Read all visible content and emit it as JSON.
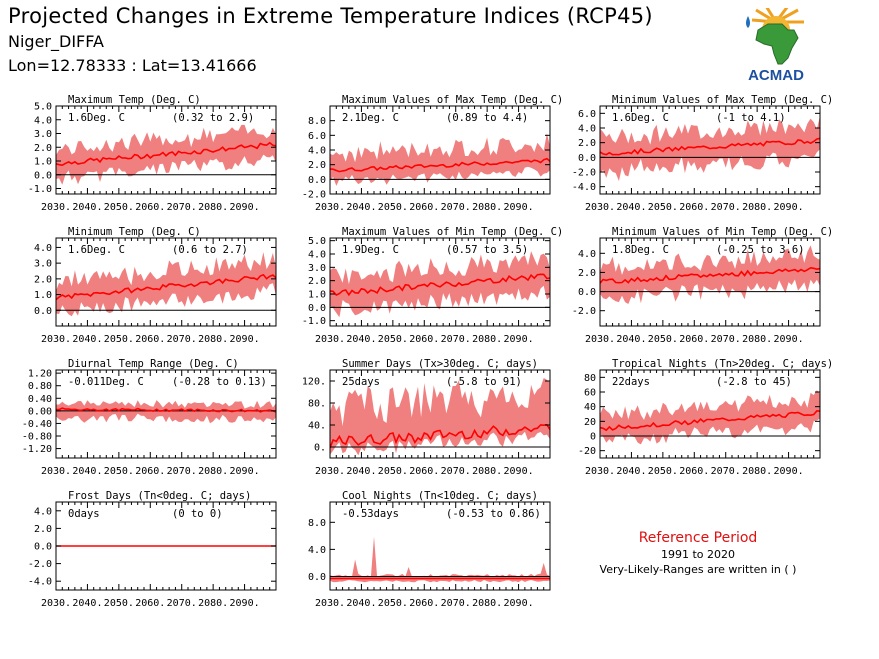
{
  "header": {
    "title": "Projected Changes in Extreme Temperature Indices (RCP45)",
    "station": "Niger_DIFFA",
    "coords": "Lon=12.78333 : Lat=13.41666"
  },
  "logo": {
    "text": "ACMAD"
  },
  "reference": {
    "title": "Reference Period",
    "years": "1991 to 2020",
    "note": "Very-Likely-Ranges are written in ( )"
  },
  "colors": {
    "band": "#f08080",
    "line": "#ff0000",
    "zero": "#000000"
  },
  "chart_data": [
    {
      "type": "area",
      "title": "Maximum Temp (Deg. C)",
      "value_label": "1.6Deg. C",
      "range_label": "(0.32 to 2.9)",
      "xlim": [
        2030,
        2100
      ],
      "ylim": [
        -1.4,
        5.0
      ],
      "yticks": [
        -1.0,
        0.0,
        1.0,
        2.0,
        3.0,
        4.0,
        5.0
      ],
      "ytick_labels": [
        "-1.0",
        "0.0",
        "1.0",
        "2.0",
        "3.0",
        "4.0",
        "5.0"
      ],
      "xticks": [
        2030,
        2040,
        2050,
        2060,
        2070,
        2080,
        2090
      ],
      "xtick_labels": [
        "2030.",
        "2040.",
        "2050.",
        "2060.",
        "2070.",
        "2080.",
        "2090."
      ],
      "mean_start": 0.8,
      "mean_end": 2.2,
      "band_low": 1.1,
      "band_high": 1.2,
      "noise": 0.35
    },
    {
      "type": "area",
      "title": "Maximum Values of Max Temp (Deg. C)",
      "value_label": "2.1Deg. C",
      "range_label": "(0.89 to 4.4)",
      "xlim": [
        2030,
        2100
      ],
      "ylim": [
        -2.0,
        10.0
      ],
      "yticks": [
        -2.0,
        0.0,
        2.0,
        4.0,
        6.0,
        8.0
      ],
      "ytick_labels": [
        "-2.0",
        "0.0",
        "2.0",
        "4.0",
        "6.0",
        "8.0"
      ],
      "xticks": [
        2030,
        2040,
        2050,
        2060,
        2070,
        2080,
        2090
      ],
      "xtick_labels": [
        "2030.",
        "2040.",
        "2050.",
        "2060.",
        "2070.",
        "2080.",
        "2090."
      ],
      "mean_start": 1.2,
      "mean_end": 2.6,
      "band_low": 1.6,
      "band_high": 2.6,
      "noise": 0.5
    },
    {
      "type": "area",
      "title": "Minimum Values of Max Temp (Deg. C)",
      "value_label": "1.6Deg. C",
      "range_label": "(-1 to 4.1)",
      "xlim": [
        2030,
        2100
      ],
      "ylim": [
        -5.0,
        7.0
      ],
      "yticks": [
        -4.0,
        -2.0,
        0.0,
        2.0,
        4.0,
        6.0
      ],
      "ytick_labels": [
        "-4.0",
        "-2.0",
        "0.0",
        "2.0",
        "4.0",
        "6.0"
      ],
      "xticks": [
        2030,
        2040,
        2050,
        2060,
        2070,
        2080,
        2090
      ],
      "xtick_labels": [
        "2030.",
        "2040.",
        "2050.",
        "2060.",
        "2070.",
        "2080.",
        "2090."
      ],
      "mean_start": 0.5,
      "mean_end": 2.3,
      "band_low": 2.6,
      "band_high": 2.5,
      "noise": 0.6
    },
    {
      "type": "area",
      "title": "Minimum Temp (Deg. C)",
      "value_label": "1.6Deg. C",
      "range_label": "(0.6 to 2.7)",
      "xlim": [
        2030,
        2100
      ],
      "ylim": [
        -1.0,
        4.6
      ],
      "yticks": [
        0.0,
        1.0,
        2.0,
        3.0,
        4.0
      ],
      "ytick_labels": [
        "0.0",
        "1.0",
        "2.0",
        "3.0",
        "4.0"
      ],
      "xticks": [
        2030,
        2040,
        2050,
        2060,
        2070,
        2080,
        2090
      ],
      "xtick_labels": [
        "2030.",
        "2040.",
        "2050.",
        "2060.",
        "2070.",
        "2080.",
        "2090."
      ],
      "mean_start": 0.8,
      "mean_end": 2.2,
      "band_low": 1.0,
      "band_high": 1.1,
      "noise": 0.3
    },
    {
      "type": "area",
      "title": "Maximum Values of Min Temp (Deg. C)",
      "value_label": "1.9Deg. C",
      "range_label": "(0.57 to 3.5)",
      "xlim": [
        2030,
        2100
      ],
      "ylim": [
        -1.4,
        5.2
      ],
      "yticks": [
        -1.0,
        0.0,
        1.0,
        2.0,
        3.0,
        4.0,
        5.0
      ],
      "ytick_labels": [
        "-1.0",
        "0.0",
        "1.0",
        "2.0",
        "3.0",
        "4.0",
        "5.0"
      ],
      "xticks": [
        2030,
        2040,
        2050,
        2060,
        2070,
        2080,
        2090
      ],
      "xtick_labels": [
        "2030.",
        "2040.",
        "2050.",
        "2060.",
        "2070.",
        "2080.",
        "2090."
      ],
      "mean_start": 1.0,
      "mean_end": 2.4,
      "band_low": 1.3,
      "band_high": 1.4,
      "noise": 0.45
    },
    {
      "type": "area",
      "title": "Minimum Values of Min Temp (Deg. C)",
      "value_label": "1.8Deg. C",
      "range_label": "(-0.25 to 3.6)",
      "xlim": [
        2030,
        2100
      ],
      "ylim": [
        -3.6,
        5.6
      ],
      "yticks": [
        -2.0,
        0.0,
        2.0,
        4.0
      ],
      "ytick_labels": [
        "-2.0",
        "0.0",
        "2.0",
        "4.0"
      ],
      "xticks": [
        2030,
        2040,
        2050,
        2060,
        2070,
        2080,
        2090
      ],
      "xtick_labels": [
        "2030.",
        "2040.",
        "2050.",
        "2060.",
        "2070.",
        "2080.",
        "2090."
      ],
      "mean_start": 1.0,
      "mean_end": 2.4,
      "band_low": 1.8,
      "band_high": 1.7,
      "noise": 0.5
    },
    {
      "type": "area",
      "title": "Diurnal Temp Range (Deg. C)",
      "value_label": "-0.011Deg. C",
      "range_label": "(-0.28 to 0.13)",
      "xlim": [
        2030,
        2100
      ],
      "ylim": [
        -1.5,
        1.3
      ],
      "yticks": [
        -1.2,
        -0.8,
        -0.4,
        0.0,
        0.4,
        0.8,
        1.2
      ],
      "ytick_labels": [
        "-1.20",
        "-0.80",
        "-0.40",
        "0.00",
        "0.40",
        "0.80",
        "1.20"
      ],
      "xticks": [
        2030,
        2040,
        2050,
        2060,
        2070,
        2080,
        2090
      ],
      "xtick_labels": [
        "2030.",
        "2040.",
        "2050.",
        "2060.",
        "2070.",
        "2080.",
        "2090."
      ],
      "mean_start": 0.05,
      "mean_end": 0.0,
      "band_low": 0.3,
      "band_high": 0.22,
      "noise": 0.08
    },
    {
      "type": "area",
      "title": "Summer Days (Tx>30deg. C; days)",
      "value_label": "25days",
      "range_label": "(-5.8 to 91)",
      "xlim": [
        2030,
        2100
      ],
      "ylim": [
        -20,
        140
      ],
      "yticks": [
        0,
        40,
        80,
        120
      ],
      "ytick_labels": [
        "0.",
        "40.",
        "80.",
        "120."
      ],
      "xticks": [
        2030,
        2040,
        2050,
        2060,
        2070,
        2080,
        2090
      ],
      "xtick_labels": [
        "2030.",
        "2040.",
        "2050.",
        "2060.",
        "2070.",
        "2080.",
        "2090."
      ],
      "mean_start": 8,
      "mean_end": 35,
      "band_low": 15,
      "band_high": 70,
      "noise": 20
    },
    {
      "type": "area",
      "title": "Tropical Nights (Tn>20deg. C; days)",
      "value_label": "22days",
      "range_label": "(-2.8 to 45)",
      "xlim": [
        2030,
        2100
      ],
      "ylim": [
        -30,
        90
      ],
      "yticks": [
        -20,
        0,
        20,
        40,
        60,
        80
      ],
      "ytick_labels": [
        "-20",
        "0",
        "20",
        "40",
        "60",
        "80"
      ],
      "xticks": [
        2030,
        2040,
        2050,
        2060,
        2070,
        2080,
        2090
      ],
      "xtick_labels": [
        "2030.",
        "2040.",
        "2050.",
        "2060.",
        "2070.",
        "2080.",
        "2090."
      ],
      "mean_start": 10,
      "mean_end": 32,
      "band_low": 18,
      "band_high": 22,
      "noise": 6
    },
    {
      "type": "area",
      "title": "Frost Days (Tn<0deg. C; days)",
      "value_label": "0days",
      "range_label": "(0 to 0)",
      "xlim": [
        2030,
        2100
      ],
      "ylim": [
        -5.0,
        5.0
      ],
      "yticks": [
        -4.0,
        -2.0,
        0.0,
        2.0,
        4.0
      ],
      "ytick_labels": [
        "-4.0",
        "-2.0",
        "0.0",
        "2.0",
        "4.0"
      ],
      "xticks": [
        2030,
        2040,
        2050,
        2060,
        2070,
        2080,
        2090
      ],
      "xtick_labels": [
        "2030.",
        "2040.",
        "2050.",
        "2060.",
        "2070.",
        "2080.",
        "2090."
      ],
      "mean_start": 0,
      "mean_end": 0,
      "band_low": 0,
      "band_high": 0,
      "noise": 0
    },
    {
      "type": "area",
      "title": "Cool Nights (Tn<10deg. C; days)",
      "value_label": "-0.53days",
      "range_label": "(-0.53 to 0.86)",
      "xlim": [
        2030,
        2100
      ],
      "ylim": [
        -2.0,
        11.0
      ],
      "yticks": [
        0.0,
        4.0,
        8.0
      ],
      "ytick_labels": [
        "0.0",
        "4.0",
        "8.0"
      ],
      "xticks": [
        2030,
        2040,
        2050,
        2060,
        2070,
        2080,
        2090
      ],
      "xtick_labels": [
        "2030.",
        "2040.",
        "2050.",
        "2060.",
        "2070.",
        "2080.",
        "2090."
      ],
      "mean_start": -0.3,
      "mean_end": -0.3,
      "band_low": 0.4,
      "band_high": 0.5,
      "noise": 0.0,
      "spikes": [
        [
          2038,
          2.5
        ],
        [
          2044,
          5.9
        ],
        [
          2055,
          1.4
        ],
        [
          2098,
          2.0
        ]
      ]
    }
  ]
}
